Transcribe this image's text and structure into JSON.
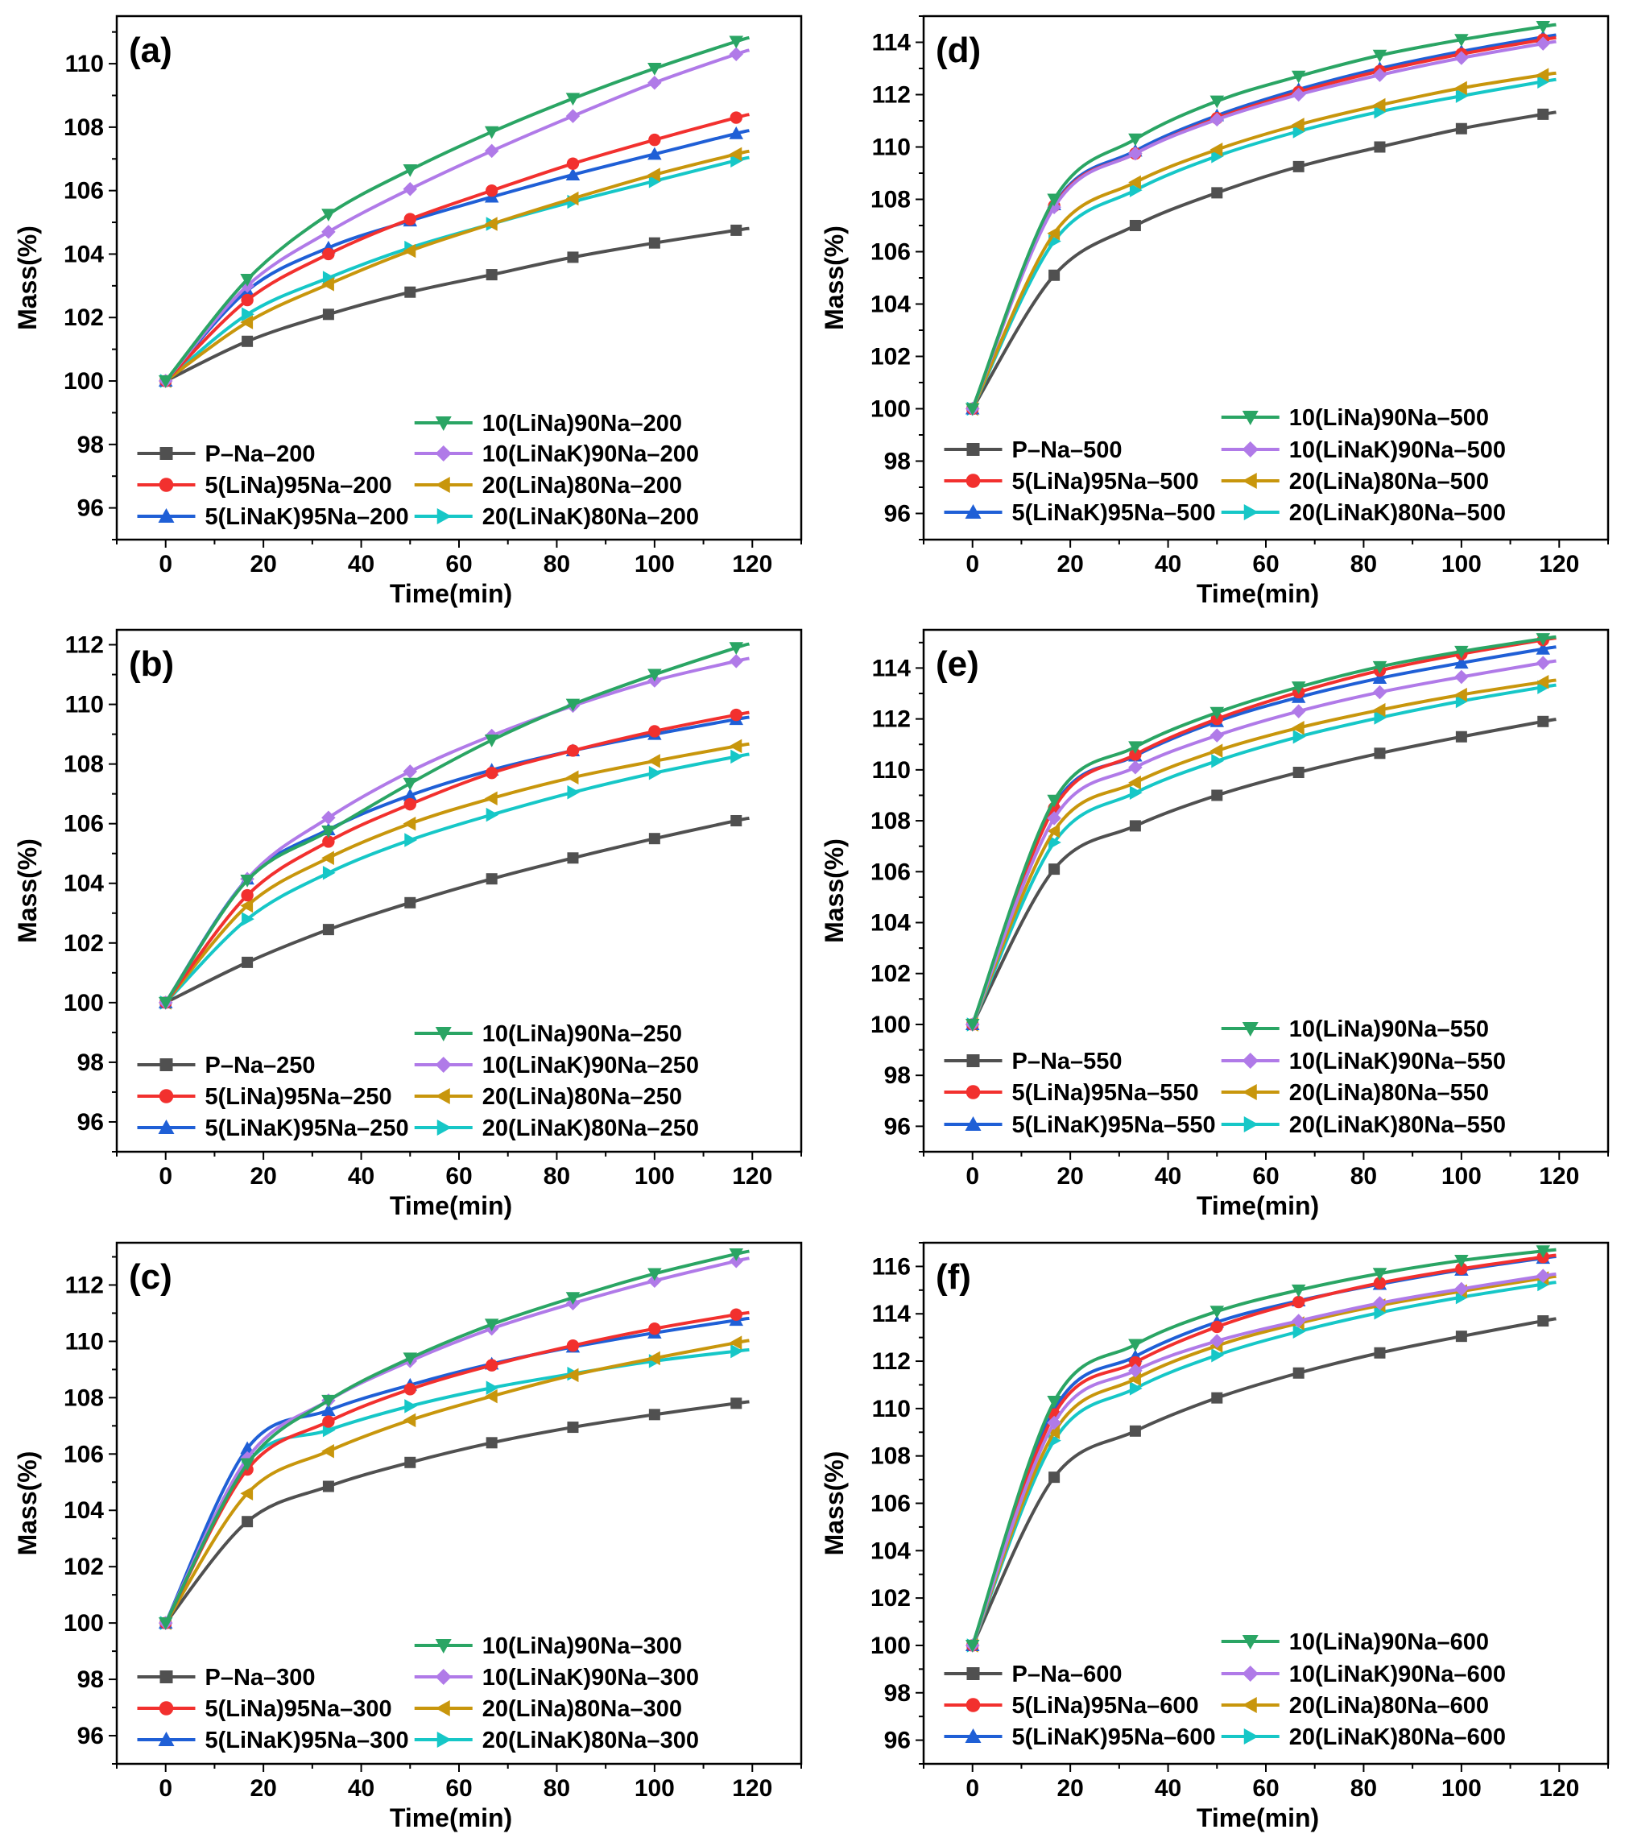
{
  "figure": {
    "description_none": ""
  },
  "styles": {
    "P-Na": {
      "color": "#505050",
      "marker": "square"
    },
    "5Li": {
      "color": "#f2302e",
      "marker": "circle"
    },
    "5LiK": {
      "color": "#1f5fd6",
      "marker": "triangle-up"
    },
    "10Li": {
      "color": "#2aa564",
      "marker": "triangle-down"
    },
    "10LiK": {
      "color": "#b07ae8",
      "marker": "diamond"
    },
    "20Li": {
      "color": "#c8960c",
      "marker": "triangle-left"
    },
    "20LiK": {
      "color": "#16c7c7",
      "marker": "triangle-right"
    }
  },
  "chart_data": [
    {
      "type": "line",
      "panel_label": "(a)",
      "xlabel": "Time(min)",
      "ylabel": "Mass(%)",
      "xlim": [
        -10,
        130
      ],
      "ylim": [
        95,
        111.5
      ],
      "xticks": [
        0,
        20,
        40,
        60,
        80,
        100,
        120
      ],
      "yticks": [
        96,
        98,
        100,
        102,
        104,
        106,
        108,
        110
      ],
      "x": [
        0,
        16.7,
        33.3,
        50,
        66.7,
        83.3,
        100,
        116.7
      ],
      "series": [
        {
          "key": "P-Na",
          "name": "P–Na–200",
          "values": [
            100,
            101.25,
            102.1,
            102.8,
            103.35,
            103.9,
            104.35,
            104.75
          ]
        },
        {
          "key": "5Li",
          "name": "5(LiNa)95Na–200",
          "values": [
            100,
            102.55,
            104.0,
            105.1,
            106.0,
            106.85,
            107.6,
            108.3
          ]
        },
        {
          "key": "5LiK",
          "name": "5(LiNaK)95Na–200",
          "values": [
            100,
            102.85,
            104.2,
            105.05,
            105.8,
            106.5,
            107.15,
            107.8
          ]
        },
        {
          "key": "10Li",
          "name": "10(LiNa)90Na–200",
          "values": [
            100,
            103.2,
            105.25,
            106.65,
            107.85,
            108.9,
            109.85,
            110.7
          ]
        },
        {
          "key": "10LiK",
          "name": "10(LiNaK)90Na–200",
          "values": [
            100,
            103.0,
            104.7,
            106.05,
            107.25,
            108.35,
            109.4,
            110.3
          ]
        },
        {
          "key": "20Li",
          "name": "20(LiNa)80Na–200",
          "values": [
            100,
            101.85,
            103.05,
            104.1,
            104.95,
            105.75,
            106.5,
            107.15
          ]
        },
        {
          "key": "20LiK",
          "name": "20(LiNaK)80Na–200",
          "values": [
            100,
            102.1,
            103.25,
            104.2,
            104.95,
            105.65,
            106.3,
            106.95
          ]
        }
      ]
    },
    {
      "type": "line",
      "panel_label": "(d)",
      "xlabel": "Time(min)",
      "ylabel": "Mass(%)",
      "xlim": [
        -10,
        130
      ],
      "ylim": [
        95,
        115
      ],
      "xticks": [
        0,
        20,
        40,
        60,
        80,
        100,
        120
      ],
      "yticks": [
        96,
        98,
        100,
        102,
        104,
        106,
        108,
        110,
        112,
        114
      ],
      "x": [
        0,
        16.7,
        33.3,
        50,
        66.7,
        83.3,
        100,
        116.7
      ],
      "series": [
        {
          "key": "P-Na",
          "name": "P–Na–500",
          "values": [
            100,
            105.1,
            107.0,
            108.25,
            109.25,
            110.0,
            110.7,
            111.25
          ]
        },
        {
          "key": "5Li",
          "name": "5(LiNa)95Na–500",
          "values": [
            100,
            107.75,
            109.75,
            111.1,
            112.1,
            112.9,
            113.55,
            114.1
          ]
        },
        {
          "key": "5LiK",
          "name": "5(LiNaK)95Na–500",
          "values": [
            100,
            107.8,
            109.85,
            111.2,
            112.2,
            113.0,
            113.65,
            114.2
          ]
        },
        {
          "key": "10Li",
          "name": "10(LiNa)90Na–500",
          "values": [
            100,
            108.0,
            110.3,
            111.75,
            112.7,
            113.5,
            114.1,
            114.6
          ]
        },
        {
          "key": "10LiK",
          "name": "10(LiNaK)90Na–500",
          "values": [
            100,
            107.7,
            109.75,
            111.05,
            112.0,
            112.75,
            113.4,
            113.95
          ]
        },
        {
          "key": "20Li",
          "name": "20(LiNa)80Na–500",
          "values": [
            100,
            106.7,
            108.65,
            109.9,
            110.85,
            111.6,
            112.25,
            112.75
          ]
        },
        {
          "key": "20LiK",
          "name": "20(LiNaK)80Na–500",
          "values": [
            100,
            106.4,
            108.35,
            109.65,
            110.6,
            111.35,
            111.95,
            112.5
          ]
        }
      ]
    },
    {
      "type": "line",
      "panel_label": "(b)",
      "xlabel": "Time(min)",
      "ylabel": "Mass(%)",
      "xlim": [
        -10,
        130
      ],
      "ylim": [
        95,
        112.5
      ],
      "xticks": [
        0,
        20,
        40,
        60,
        80,
        100,
        120
      ],
      "yticks": [
        96,
        98,
        100,
        102,
        104,
        106,
        108,
        110,
        112
      ],
      "x": [
        0,
        16.7,
        33.3,
        50,
        66.7,
        83.3,
        100,
        116.7
      ],
      "series": [
        {
          "key": "P-Na",
          "name": "P–Na–250",
          "values": [
            100,
            101.35,
            102.45,
            103.35,
            104.15,
            104.85,
            105.5,
            106.1
          ]
        },
        {
          "key": "5Li",
          "name": "5(LiNa)95Na–250",
          "values": [
            100,
            103.6,
            105.4,
            106.65,
            107.7,
            108.45,
            109.1,
            109.65
          ]
        },
        {
          "key": "5LiK",
          "name": "5(LiNaK)95Na–250",
          "values": [
            100,
            104.15,
            105.8,
            106.95,
            107.8,
            108.45,
            109.0,
            109.5
          ]
        },
        {
          "key": "10Li",
          "name": "10(LiNa)90Na–250",
          "values": [
            100,
            104.1,
            105.75,
            107.35,
            108.8,
            110.0,
            111.0,
            111.9
          ]
        },
        {
          "key": "10LiK",
          "name": "10(LiNaK)90Na–250",
          "values": [
            100,
            104.15,
            106.2,
            107.75,
            108.95,
            109.95,
            110.8,
            111.45
          ]
        },
        {
          "key": "20Li",
          "name": "20(LiNa)80Na–250",
          "values": [
            100,
            103.25,
            104.85,
            106.0,
            106.85,
            107.55,
            108.1,
            108.6
          ]
        },
        {
          "key": "20LiK",
          "name": "20(LiNaK)80Na–250",
          "values": [
            100,
            102.8,
            104.35,
            105.45,
            106.3,
            107.05,
            107.7,
            108.25
          ]
        }
      ]
    },
    {
      "type": "line",
      "panel_label": "(e)",
      "xlabel": "Time(min)",
      "ylabel": "Mass(%)",
      "xlim": [
        -10,
        130
      ],
      "ylim": [
        95,
        115.5
      ],
      "xticks": [
        0,
        20,
        40,
        60,
        80,
        100,
        120
      ],
      "yticks": [
        96,
        98,
        100,
        102,
        104,
        106,
        108,
        110,
        112,
        114
      ],
      "x": [
        0,
        16.7,
        33.3,
        50,
        66.7,
        83.3,
        100,
        116.7
      ],
      "series": [
        {
          "key": "P-Na",
          "name": "P–Na–550",
          "values": [
            100,
            106.1,
            107.8,
            109.0,
            109.9,
            110.65,
            111.3,
            111.9
          ]
        },
        {
          "key": "5Li",
          "name": "5(LiNa)95Na–550",
          "values": [
            100,
            108.5,
            110.6,
            112.0,
            113.05,
            113.9,
            114.55,
            115.1
          ]
        },
        {
          "key": "5LiK",
          "name": "5(LiNaK)95Na–550",
          "values": [
            100,
            108.6,
            110.55,
            111.9,
            112.85,
            113.6,
            114.2,
            114.75
          ]
        },
        {
          "key": "10Li",
          "name": "10(LiNa)90Na–550",
          "values": [
            100,
            108.8,
            110.9,
            112.25,
            113.25,
            114.05,
            114.65,
            115.15
          ]
        },
        {
          "key": "10LiK",
          "name": "10(LiNaK)90Na–550",
          "values": [
            100,
            108.1,
            110.1,
            111.35,
            112.3,
            113.05,
            113.65,
            114.2
          ]
        },
        {
          "key": "20Li",
          "name": "20(LiNa)80Na–550",
          "values": [
            100,
            107.6,
            109.5,
            110.75,
            111.65,
            112.35,
            112.95,
            113.45
          ]
        },
        {
          "key": "20LiK",
          "name": "20(LiNaK)80Na–550",
          "values": [
            100,
            107.15,
            109.1,
            110.35,
            111.3,
            112.05,
            112.7,
            113.25
          ]
        }
      ]
    },
    {
      "type": "line",
      "panel_label": "(c)",
      "xlabel": "Time(min)",
      "ylabel": "Mass(%)",
      "xlim": [
        -10,
        130
      ],
      "ylim": [
        95,
        113.5
      ],
      "xticks": [
        0,
        20,
        40,
        60,
        80,
        100,
        120
      ],
      "yticks": [
        96,
        98,
        100,
        102,
        104,
        106,
        108,
        110,
        112
      ],
      "x": [
        0,
        16.7,
        33.3,
        50,
        66.7,
        83.3,
        100,
        116.7
      ],
      "series": [
        {
          "key": "P-Na",
          "name": "P–Na–300",
          "values": [
            100,
            103.6,
            104.85,
            105.7,
            106.4,
            106.95,
            107.4,
            107.8
          ]
        },
        {
          "key": "5Li",
          "name": "5(LiNa)95Na–300",
          "values": [
            100,
            105.45,
            107.15,
            108.3,
            109.15,
            109.85,
            110.45,
            110.95
          ]
        },
        {
          "key": "5LiK",
          "name": "5(LiNaK)95Na–300",
          "values": [
            100,
            106.2,
            107.55,
            108.45,
            109.2,
            109.8,
            110.3,
            110.75
          ]
        },
        {
          "key": "10Li",
          "name": "10(LiNa)90Na–300",
          "values": [
            100,
            105.65,
            107.9,
            109.4,
            110.6,
            111.55,
            112.4,
            113.1
          ]
        },
        {
          "key": "10LiK",
          "name": "10(LiNaK)90Na–300",
          "values": [
            100,
            105.85,
            107.9,
            109.3,
            110.45,
            111.35,
            112.15,
            112.85
          ]
        },
        {
          "key": "20Li",
          "name": "20(LiNa)80Na–300",
          "values": [
            100,
            104.6,
            106.1,
            107.2,
            108.05,
            108.8,
            109.4,
            109.95
          ]
        },
        {
          "key": "20LiK",
          "name": "20(LiNaK)80Na–300",
          "values": [
            100,
            105.7,
            106.85,
            107.7,
            108.35,
            108.85,
            109.3,
            109.65
          ]
        }
      ]
    },
    {
      "type": "line",
      "panel_label": "(f)",
      "xlabel": "Time(min)",
      "ylabel": "Mass(%)",
      "xlim": [
        -10,
        130
      ],
      "ylim": [
        95,
        117
      ],
      "xticks": [
        0,
        20,
        40,
        60,
        80,
        100,
        120
      ],
      "yticks": [
        96,
        98,
        100,
        102,
        104,
        106,
        108,
        110,
        112,
        114,
        116
      ],
      "x": [
        0,
        16.7,
        33.3,
        50,
        66.7,
        83.3,
        100,
        116.7
      ],
      "series": [
        {
          "key": "P-Na",
          "name": "P–Na–600",
          "values": [
            100,
            107.1,
            109.05,
            110.45,
            111.5,
            112.35,
            113.05,
            113.7
          ]
        },
        {
          "key": "5Li",
          "name": "5(LiNa)95Na–600",
          "values": [
            100,
            109.75,
            111.95,
            113.45,
            114.5,
            115.3,
            115.9,
            116.4
          ]
        },
        {
          "key": "5LiK",
          "name": "5(LiNaK)95Na–600",
          "values": [
            100,
            109.95,
            112.2,
            113.65,
            114.55,
            115.25,
            115.85,
            116.35
          ]
        },
        {
          "key": "10Li",
          "name": "10(LiNa)90Na–600",
          "values": [
            100,
            110.3,
            112.7,
            114.1,
            115.0,
            115.7,
            116.25,
            116.65
          ]
        },
        {
          "key": "10LiK",
          "name": "10(LiNaK)90Na–600",
          "values": [
            100,
            109.4,
            111.6,
            112.85,
            113.7,
            114.45,
            115.05,
            115.6
          ]
        },
        {
          "key": "20Li",
          "name": "20(LiNa)80Na–600",
          "values": [
            100,
            109.0,
            111.25,
            112.65,
            113.6,
            114.35,
            114.95,
            115.5
          ]
        },
        {
          "key": "20LiK",
          "name": "20(LiNaK)80Na–600",
          "values": [
            100,
            108.65,
            110.85,
            112.25,
            113.25,
            114.05,
            114.7,
            115.25
          ]
        }
      ]
    }
  ]
}
